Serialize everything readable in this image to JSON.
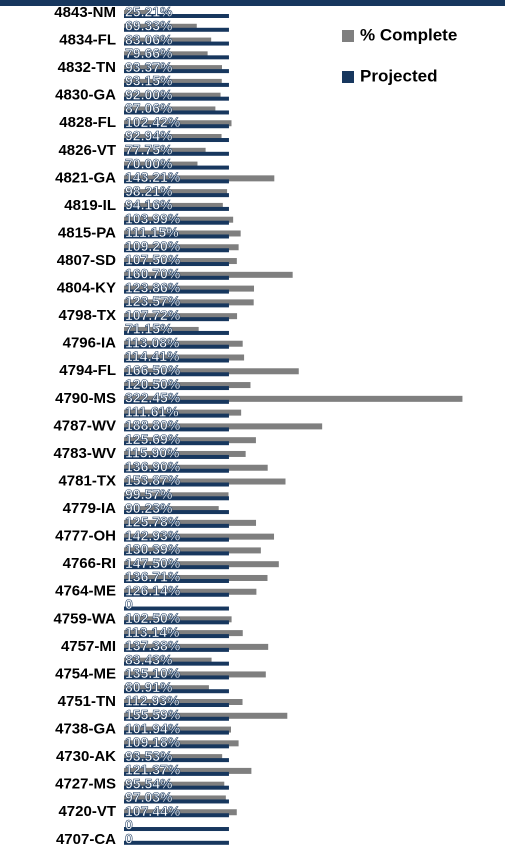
{
  "chart_data": {
    "type": "hbar",
    "categories": [
      "4843-NM",
      null,
      "4834-FL",
      null,
      "4832-TN",
      null,
      "4830-GA",
      null,
      "4828-FL",
      null,
      "4826-VT",
      null,
      "4821-GA",
      null,
      "4819-IL",
      null,
      "4815-PA",
      null,
      "4807-SD",
      null,
      "4804-KY",
      null,
      "4798-TX",
      null,
      "4796-IA",
      null,
      "4794-FL",
      null,
      "4790-MS",
      null,
      "4787-WV",
      null,
      "4783-WV",
      null,
      "4781-TX",
      null,
      "4779-IA",
      null,
      "4777-OH",
      null,
      "4766-RI",
      null,
      "4764-ME",
      null,
      "4759-WA",
      null,
      "4757-MI",
      null,
      "4754-ME",
      null,
      "4751-TN",
      null,
      "4738-GA",
      null,
      "4730-AK",
      null,
      "4727-MS",
      null,
      "4720-VT",
      null,
      "4707-CA"
    ],
    "series": [
      {
        "name": "% Complete",
        "color": "#7f7f7f",
        "values": [
          25.21,
          69.33,
          83.06,
          79.66,
          93.37,
          93.15,
          92.0,
          87.06,
          102.42,
          92.94,
          77.75,
          70.0,
          143.21,
          98.21,
          94.16,
          103.99,
          111.15,
          109.2,
          107.5,
          160.7,
          123.86,
          123.57,
          107.72,
          71.15,
          113.08,
          114.41,
          166.5,
          120.5,
          322.45,
          111.61,
          188.8,
          125.69,
          115.9,
          136.9,
          153.87,
          99.57,
          90.23,
          125.78,
          142.93,
          130.39,
          147.5,
          136.71,
          126.14,
          0,
          102.5,
          113.14,
          137.38,
          83.43,
          135.1,
          80.91,
          112.93,
          155.59,
          101.94,
          109.18,
          93.53,
          121.37,
          95.54,
          97.03,
          107.44,
          0,
          0
        ],
        "value_labels": [
          "25.21%",
          "69.33%",
          "83.06%",
          "79.66%",
          "93.37%",
          "93.15%",
          "92.00%",
          "87.06%",
          "102.42%",
          "92.94%",
          "77.75%",
          "70.00%",
          "143.21%",
          "98.21%",
          "94.16%",
          "103.99%",
          "111.15%",
          "109.20%",
          "107.50%",
          "160.70%",
          "123.86%",
          "123.57%",
          "107.72%",
          "71.15%",
          "113.08%",
          "114.41%",
          "166.50%",
          "120.50%",
          "322.45%",
          "111.61%",
          "188.80%",
          "125.69%",
          "115.90%",
          "136.90%",
          "153.87%",
          "99.57%",
          "90.23%",
          "125.78%",
          "142.93%",
          "130.39%",
          "147.50%",
          "136.71%",
          "126.14%",
          "0",
          "102.50%",
          "113.14%",
          "137.38%",
          "83.43%",
          "135.10%",
          "80.91%",
          "112.93%",
          "155.59%",
          "101.94%",
          "109.18%",
          "93.53%",
          "121.37%",
          "95.54%",
          "97.03%",
          "107.44%",
          "0",
          "0"
        ]
      },
      {
        "name": "Projected",
        "color": "#17375e",
        "values": [
          100,
          100,
          100,
          100,
          100,
          100,
          100,
          100,
          100,
          100,
          100,
          100,
          100,
          100,
          100,
          100,
          100,
          100,
          100,
          100,
          100,
          100,
          100,
          100,
          100,
          100,
          100,
          100,
          100,
          100,
          100,
          100,
          100,
          100,
          100,
          100,
          100,
          100,
          100,
          100,
          100,
          100,
          100,
          100,
          100,
          100,
          100,
          100,
          100,
          100,
          100,
          100,
          100,
          100,
          100,
          100,
          100,
          100,
          100,
          100,
          100
        ]
      }
    ],
    "xlim": [
      0,
      363
    ],
    "legend": "upper right"
  }
}
